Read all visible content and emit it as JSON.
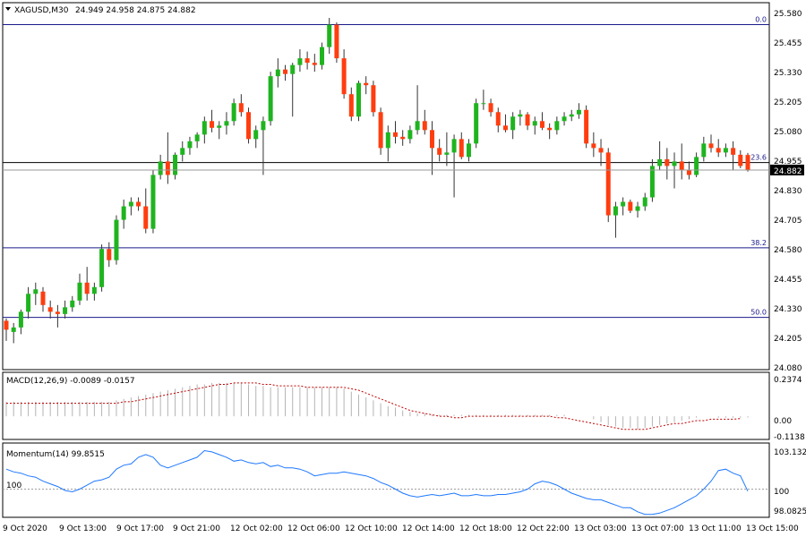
{
  "header": {
    "symbol_timeframe": "XAGUSD,M30",
    "ohlc": "24.949 24.958 24.875 24.882"
  },
  "chart_data": [
    {
      "type": "candlestick",
      "name": "XAGUSD,M30",
      "ylim": [
        24.0,
        25.58
      ],
      "ytick_labels": [
        "25.580",
        "25.455",
        "25.330",
        "25.205",
        "25.080",
        "24.955",
        "24.830",
        "24.705",
        "24.580",
        "24.455",
        "24.330",
        "24.205",
        "24.080"
      ],
      "current_price": "24.882",
      "bull_color": "#1fb41f",
      "bear_color": "#ff3d0f",
      "fib_levels": [
        {
          "label": "0.0",
          "value": 25.53
        },
        {
          "label": "23.6",
          "value": 24.915
        },
        {
          "label": "38.2",
          "value": 24.535
        },
        {
          "label": "50.0",
          "value": 24.225
        }
      ],
      "candles": [
        [
          24.21,
          24.22,
          24.12,
          24.17
        ],
        [
          24.16,
          24.2,
          24.11,
          24.18
        ],
        [
          24.18,
          24.26,
          24.15,
          24.25
        ],
        [
          24.25,
          24.36,
          24.22,
          24.33
        ],
        [
          24.33,
          24.38,
          24.28,
          24.35
        ],
        [
          24.34,
          24.36,
          24.25,
          24.28
        ],
        [
          24.27,
          24.3,
          24.22,
          24.25
        ],
        [
          24.25,
          24.28,
          24.18,
          24.24
        ],
        [
          24.24,
          24.3,
          24.22,
          24.27
        ],
        [
          24.27,
          24.32,
          24.25,
          24.3
        ],
        [
          24.3,
          24.42,
          24.28,
          24.38
        ],
        [
          24.38,
          24.45,
          24.3,
          24.33
        ],
        [
          24.33,
          24.38,
          24.3,
          24.36
        ],
        [
          24.36,
          24.55,
          24.34,
          24.53
        ],
        [
          24.53,
          24.56,
          24.45,
          24.48
        ],
        [
          24.48,
          24.68,
          24.46,
          24.66
        ],
        [
          24.66,
          24.75,
          24.62,
          24.72
        ],
        [
          24.72,
          24.76,
          24.68,
          24.74
        ],
        [
          24.74,
          24.76,
          24.7,
          24.72
        ],
        [
          24.72,
          24.8,
          24.6,
          24.62
        ],
        [
          24.62,
          24.88,
          24.6,
          24.86
        ],
        [
          24.86,
          24.95,
          24.84,
          24.92
        ],
        [
          24.92,
          25.05,
          24.82,
          24.86
        ],
        [
          24.86,
          24.96,
          24.84,
          24.95
        ],
        [
          24.95,
          25.01,
          24.92,
          24.98
        ],
        [
          24.98,
          25.03,
          24.95,
          25.01
        ],
        [
          25.01,
          25.05,
          24.98,
          25.04
        ],
        [
          25.04,
          25.12,
          25.0,
          25.1
        ],
        [
          25.1,
          25.15,
          25.05,
          25.07
        ],
        [
          25.07,
          25.1,
          25.02,
          25.08
        ],
        [
          25.08,
          25.14,
          25.04,
          25.1
        ],
        [
          25.1,
          25.2,
          25.08,
          25.18
        ],
        [
          25.18,
          25.22,
          25.12,
          25.14
        ],
        [
          25.14,
          25.16,
          25.0,
          25.02
        ],
        [
          25.02,
          25.08,
          24.98,
          25.06
        ],
        [
          25.06,
          25.12,
          24.86,
          25.1
        ],
        [
          25.1,
          25.32,
          25.08,
          25.3
        ],
        [
          25.3,
          25.38,
          25.25,
          25.33
        ],
        [
          25.33,
          25.35,
          25.28,
          25.31
        ],
        [
          25.31,
          25.36,
          25.12,
          25.35
        ],
        [
          25.35,
          25.42,
          25.32,
          25.38
        ],
        [
          25.38,
          25.41,
          25.33,
          25.36
        ],
        [
          25.36,
          25.4,
          25.32,
          25.35
        ],
        [
          25.35,
          25.45,
          25.33,
          25.43
        ],
        [
          25.43,
          25.56,
          25.4,
          25.53
        ],
        [
          25.53,
          25.54,
          25.36,
          25.38
        ],
        [
          25.38,
          25.42,
          25.2,
          25.22
        ],
        [
          25.22,
          25.25,
          25.1,
          25.12
        ],
        [
          25.12,
          25.28,
          25.1,
          25.27
        ],
        [
          25.27,
          25.3,
          25.22,
          25.26
        ],
        [
          25.26,
          25.28,
          25.12,
          25.14
        ],
        [
          25.14,
          25.16,
          24.95,
          24.98
        ],
        [
          24.98,
          25.08,
          24.92,
          25.05
        ],
        [
          25.05,
          25.1,
          25.0,
          25.03
        ],
        [
          25.03,
          25.06,
          24.99,
          25.02
        ],
        [
          25.02,
          25.08,
          25.0,
          25.06
        ],
        [
          25.06,
          25.26,
          25.04,
          25.1
        ],
        [
          25.1,
          25.15,
          25.04,
          25.06
        ],
        [
          25.06,
          25.1,
          24.86,
          24.98
        ],
        [
          24.98,
          25.02,
          24.92,
          24.95
        ],
        [
          24.95,
          25.05,
          24.9,
          24.96
        ],
        [
          24.96,
          25.04,
          24.76,
          25.02
        ],
        [
          25.02,
          25.05,
          24.93,
          24.94
        ],
        [
          24.94,
          25.02,
          24.92,
          25.0
        ],
        [
          25.0,
          25.2,
          24.98,
          25.18
        ],
        [
          25.18,
          25.24,
          25.15,
          25.18
        ],
        [
          25.18,
          25.2,
          25.12,
          25.14
        ],
        [
          25.14,
          25.16,
          25.05,
          25.08
        ],
        [
          25.08,
          25.13,
          25.05,
          25.06
        ],
        [
          25.06,
          25.14,
          25.02,
          25.12
        ],
        [
          25.12,
          25.15,
          25.08,
          25.13
        ],
        [
          25.13,
          25.14,
          25.06,
          25.08
        ],
        [
          25.08,
          25.12,
          25.04,
          25.1
        ],
        [
          25.1,
          25.14,
          25.06,
          25.07
        ],
        [
          25.07,
          25.09,
          25.02,
          25.06
        ],
        [
          25.06,
          25.12,
          25.04,
          25.1
        ],
        [
          25.1,
          25.14,
          25.08,
          25.12
        ],
        [
          25.12,
          25.15,
          25.1,
          25.13
        ],
        [
          25.13,
          25.18,
          25.11,
          25.15
        ],
        [
          25.15,
          25.17,
          24.98,
          25.0
        ],
        [
          25.0,
          25.05,
          24.94,
          24.98
        ],
        [
          24.98,
          25.02,
          24.9,
          24.96
        ],
        [
          24.96,
          24.98,
          24.65,
          24.68
        ],
        [
          24.68,
          24.74,
          24.58,
          24.72
        ],
        [
          24.72,
          24.76,
          24.68,
          24.74
        ],
        [
          24.74,
          24.75,
          24.69,
          24.7
        ],
        [
          24.7,
          24.74,
          24.67,
          24.72
        ],
        [
          24.72,
          24.78,
          24.7,
          24.76
        ],
        [
          24.76,
          24.93,
          24.74,
          24.9
        ],
        [
          24.9,
          25.01,
          24.88,
          24.93
        ],
        [
          24.93,
          24.98,
          24.84,
          24.9
        ],
        [
          24.9,
          24.96,
          24.8,
          24.92
        ],
        [
          24.92,
          25.0,
          24.84,
          24.88
        ],
        [
          24.88,
          24.92,
          24.84,
          24.86
        ],
        [
          24.86,
          24.96,
          24.85,
          24.94
        ],
        [
          24.94,
          25.03,
          24.92,
          25.0
        ],
        [
          25.0,
          25.04,
          24.96,
          24.98
        ],
        [
          24.98,
          25.02,
          24.94,
          24.96
        ],
        [
          24.96,
          25.0,
          24.94,
          24.98
        ],
        [
          24.98,
          25.01,
          24.88,
          24.95
        ],
        [
          24.95,
          24.97,
          24.89,
          24.9
        ],
        [
          24.949,
          24.958,
          24.875,
          24.882
        ]
      ]
    },
    {
      "type": "bar",
      "name": "MACD",
      "title": "MACD(12,26,9) -0.0089 -0.0157",
      "ylim": [
        -0.1538,
        0.2974
      ],
      "ytick_labels": [
        "0.2374",
        "0.00",
        "-0.1138"
      ],
      "signal_color": "#c00000",
      "macd": [
        0.1,
        0.1,
        0.1,
        0.1,
        0.1,
        0.1,
        0.1,
        0.1,
        0.1,
        0.1,
        0.1,
        0.1,
        0.1,
        0.1,
        0.1,
        0.11,
        0.12,
        0.13,
        0.14,
        0.15,
        0.16,
        0.17,
        0.18,
        0.19,
        0.2,
        0.21,
        0.22,
        0.22,
        0.23,
        0.23,
        0.23,
        0.23,
        0.23,
        0.22,
        0.21,
        0.21,
        0.2,
        0.2,
        0.2,
        0.2,
        0.2,
        0.2,
        0.2,
        0.2,
        0.2,
        0.2,
        0.19,
        0.17,
        0.15,
        0.13,
        0.11,
        0.09,
        0.07,
        0.06,
        0.04,
        0.03,
        0.02,
        0.02,
        0.01,
        0.01,
        0.01,
        0.01,
        0.01,
        0.01,
        0.01,
        0.01,
        0.01,
        0.01,
        0.01,
        0.01,
        0.01,
        0.01,
        0.01,
        0.01,
        0.01,
        0.01,
        0.01,
        0.0,
        0.0,
        0.0,
        -0.02,
        -0.04,
        -0.06,
        -0.07,
        -0.08,
        -0.08,
        -0.09,
        -0.08,
        -0.07,
        -0.06,
        -0.05,
        -0.04,
        -0.03,
        -0.02,
        -0.01,
        -0.0,
        -0.0,
        -0.01,
        -0.01,
        -0.01,
        -0.01,
        -0.009
      ],
      "signal": [
        0.09,
        0.09,
        0.09,
        0.09,
        0.09,
        0.09,
        0.09,
        0.09,
        0.09,
        0.09,
        0.09,
        0.09,
        0.09,
        0.09,
        0.09,
        0.09,
        0.1,
        0.1,
        0.11,
        0.12,
        0.13,
        0.14,
        0.15,
        0.16,
        0.17,
        0.18,
        0.19,
        0.2,
        0.21,
        0.22,
        0.22,
        0.23,
        0.23,
        0.23,
        0.23,
        0.22,
        0.22,
        0.21,
        0.21,
        0.21,
        0.21,
        0.2,
        0.2,
        0.2,
        0.2,
        0.2,
        0.2,
        0.19,
        0.18,
        0.16,
        0.14,
        0.12,
        0.1,
        0.08,
        0.06,
        0.04,
        0.03,
        0.02,
        0.01,
        0.0,
        -0.0,
        -0.01,
        -0.01,
        -0.0,
        0.0,
        0.0,
        0.0,
        0.0,
        0.0,
        0.0,
        0.0,
        0.0,
        0.0,
        0.0,
        -0.0,
        -0.01,
        -0.01,
        -0.02,
        -0.03,
        -0.04,
        -0.05,
        -0.06,
        -0.07,
        -0.08,
        -0.09,
        -0.09,
        -0.09,
        -0.09,
        -0.08,
        -0.07,
        -0.06,
        -0.05,
        -0.05,
        -0.04,
        -0.03,
        -0.03,
        -0.02,
        -0.02,
        -0.02,
        -0.02,
        -0.016
      ]
    },
    {
      "type": "line",
      "name": "Momentum",
      "title": "Momentum(14) 99.8515",
      "ylim": [
        98.0825,
        103.1327
      ],
      "ytick_labels": [
        "103.1327",
        "100",
        "98.0825"
      ],
      "level_label": "100",
      "line_color": "#1e78ff",
      "values": [
        101.5,
        101.3,
        101.2,
        101.0,
        100.9,
        100.6,
        100.4,
        100.2,
        99.9,
        99.8,
        100.0,
        100.3,
        100.6,
        100.7,
        100.9,
        101.5,
        101.8,
        101.9,
        102.4,
        102.6,
        102.4,
        101.8,
        101.6,
        101.8,
        102.0,
        102.2,
        102.4,
        102.9,
        102.8,
        102.6,
        102.4,
        102.1,
        102.2,
        102.0,
        101.9,
        102.0,
        101.7,
        101.8,
        101.6,
        101.6,
        101.5,
        101.3,
        101.0,
        101.1,
        101.2,
        101.2,
        101.3,
        101.2,
        101.1,
        101.0,
        100.8,
        100.5,
        100.3,
        100.0,
        99.7,
        99.5,
        99.4,
        99.5,
        99.6,
        99.5,
        99.6,
        99.7,
        99.5,
        99.5,
        99.6,
        99.5,
        99.5,
        99.6,
        99.6,
        99.7,
        99.8,
        100.0,
        100.4,
        100.6,
        100.5,
        100.3,
        100.0,
        99.7,
        99.5,
        99.3,
        99.2,
        99.2,
        99.0,
        98.8,
        98.6,
        98.6,
        98.3,
        98.1,
        98.1,
        98.2,
        98.4,
        98.6,
        98.9,
        99.2,
        99.5,
        100.0,
        100.6,
        101.4,
        101.5,
        101.2,
        101.0,
        99.85
      ]
    }
  ],
  "time_axis": {
    "labels": [
      "9 Oct 2020",
      "9 Oct 13:00",
      "9 Oct 17:00",
      "9 Oct 21:00",
      "12 Oct 02:00",
      "12 Oct 06:00",
      "12 Oct 10:00",
      "12 Oct 14:00",
      "12 Oct 18:00",
      "12 Oct 22:00",
      "13 Oct 03:00",
      "13 Oct 07:00",
      "13 Oct 11:00",
      "13 Oct 15:00"
    ]
  }
}
